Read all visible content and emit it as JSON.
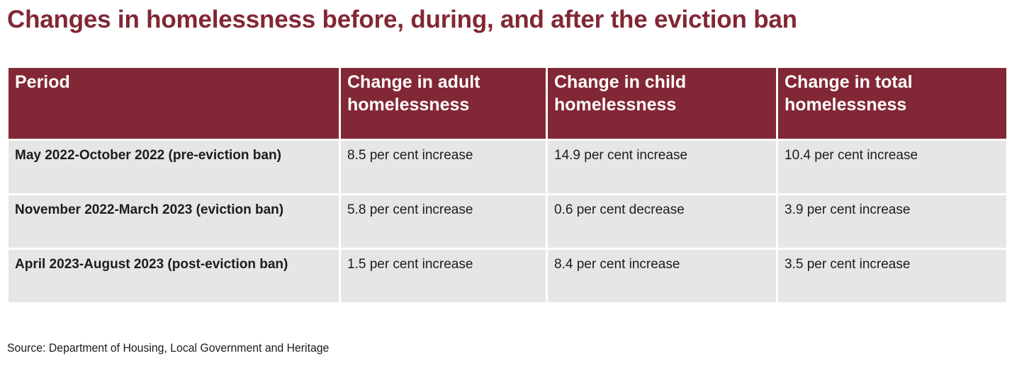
{
  "title": "Changes in homelessness before, during, and after the eviction ban",
  "source": "Source: Department of Housing, Local Government and Heritage",
  "colors": {
    "header_background": "#822735",
    "title_text": "#822735",
    "row_background": "#e6e6e6"
  },
  "chart_data": {
    "type": "table",
    "title": "Changes in homelessness before, during, and after the eviction ban",
    "columns": [
      "Period",
      "Change in adult homelessness",
      "Change in child homelessness",
      "Change in total homelessness"
    ],
    "rows": [
      {
        "period": "May 2022-October 2022 (pre-eviction ban)",
        "adult": "8.5 per cent increase",
        "child": "14.9 per cent increase",
        "total": "10.4 per cent increase"
      },
      {
        "period": "November 2022-March 2023 (eviction ban)",
        "adult": "5.8 per cent increase",
        "child": "0.6 per cent decrease",
        "total": "3.9 per cent increase"
      },
      {
        "period": "April 2023-August 2023 (post-eviction ban)",
        "adult": "1.5 per cent increase",
        "child": "8.4 per cent increase",
        "total": "3.5 per cent increase"
      }
    ],
    "source": "Source: Department of Housing, Local Government and Heritage"
  }
}
